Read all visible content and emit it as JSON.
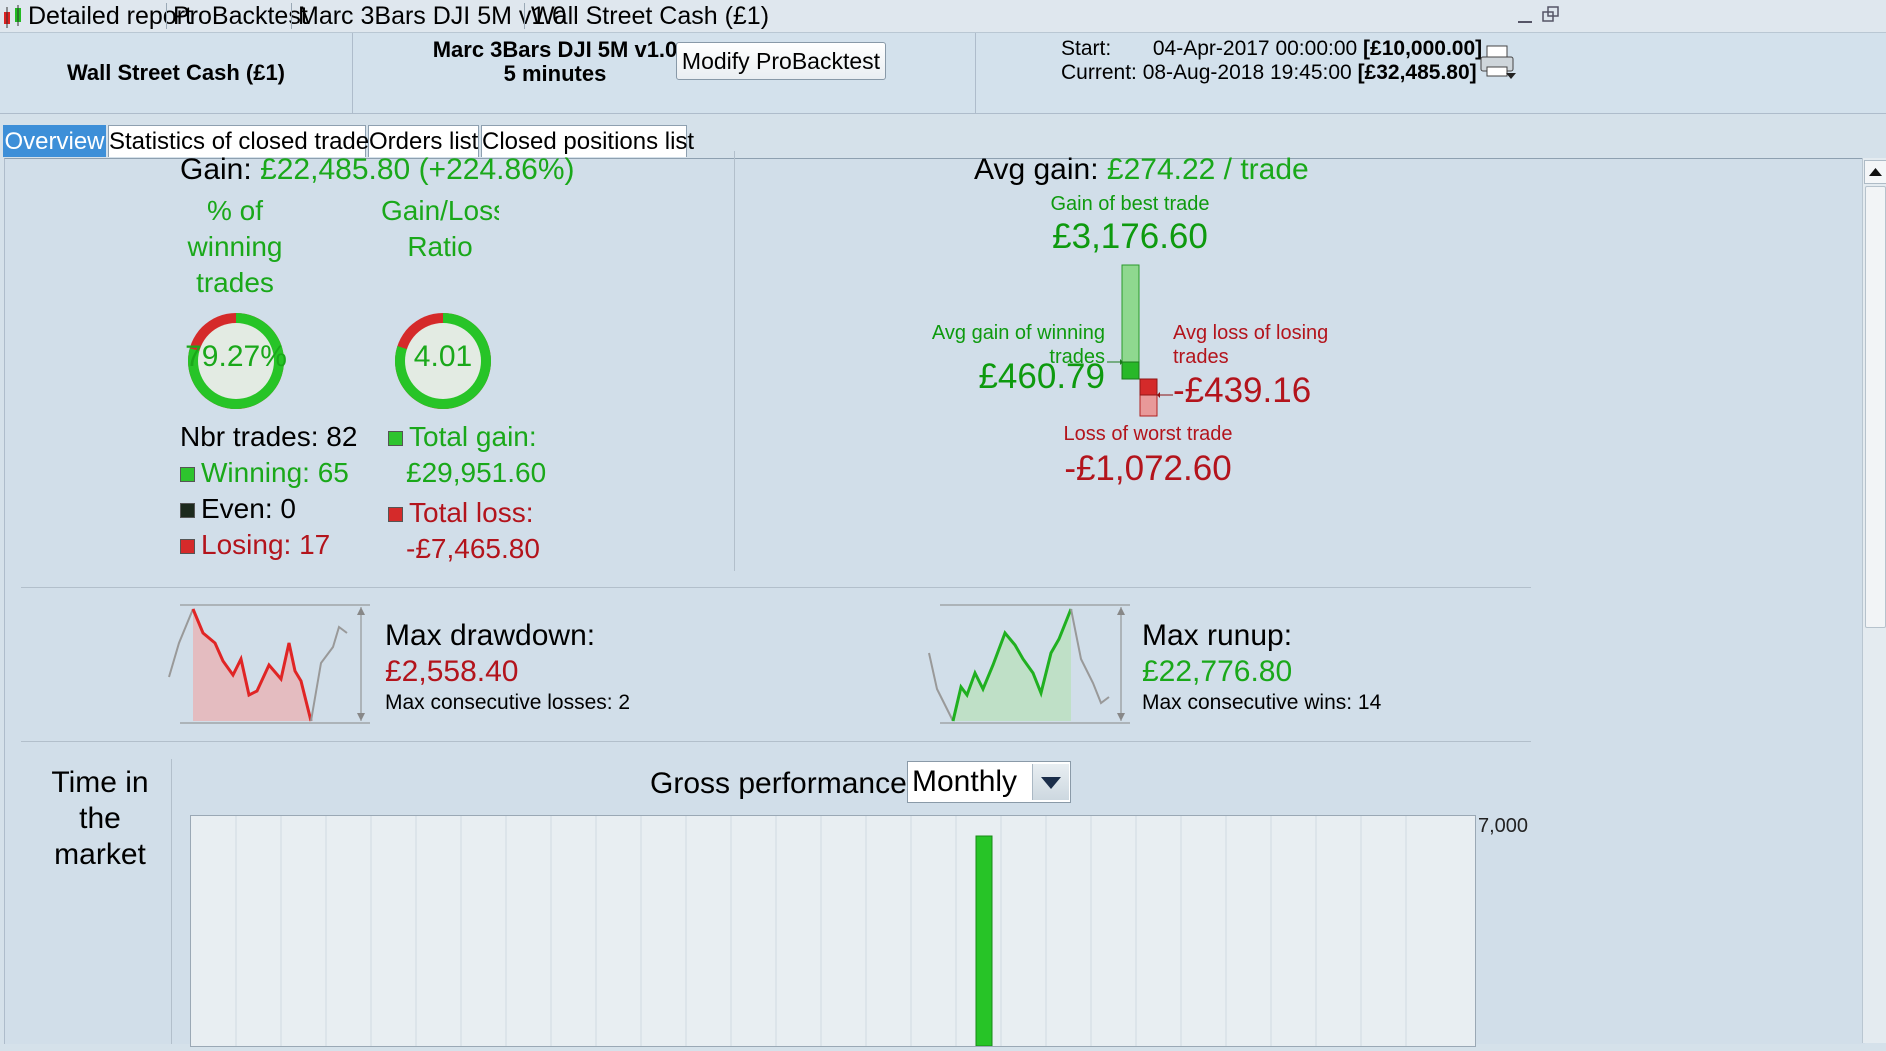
{
  "titlebar": {
    "crumbs": [
      "Detailed report",
      "ProBacktest",
      "Marc 3Bars DJI 5M v1.0",
      "Wall Street Cash (£1)"
    ]
  },
  "header": {
    "instrument": "Wall Street Cash (£1)",
    "strategy_name": "Marc 3Bars DJI 5M v1.0",
    "timeframe": "5 minutes",
    "modify_label": "Modify ProBacktest",
    "start_label": "Start:",
    "start_date": "04-Apr-2017 00:00:00",
    "start_capital": "[£10,000.00]",
    "current_label": "Current:",
    "current_date": "08-Aug-2018 19:45:00",
    "current_capital": "[£32,485.80]"
  },
  "tabs": [
    "Overview",
    "Statistics of closed trades",
    "Orders list",
    "Closed positions list"
  ],
  "overview": {
    "gain_label": "Gain:",
    "gain_value": "£22,485.80",
    "gain_pct": "(+224.86%)",
    "win_pct_label": [
      "% of",
      "winning",
      "trades"
    ],
    "win_pct_value": "79.27%",
    "win_ratio": 0.7927,
    "gl_ratio_label": [
      "Gain/Loss",
      "Ratio"
    ],
    "gl_ratio_value": "4.01",
    "gl_ratio_fraction": 0.8004,
    "nbr_trades": "Nbr trades: 82",
    "winning": "Winning: 65",
    "even": "Even: 0",
    "losing": "Losing: 17",
    "total_gain_label": "Total gain:",
    "total_gain_value": "£29,951.60",
    "total_loss_label": "Total loss:",
    "total_loss_value": "-£7,465.80",
    "avg_gain_label": "Avg gain:",
    "avg_gain_value": "£274.22 / trade",
    "best_trade_label": "Gain of best trade",
    "best_trade_value": "£3,176.60",
    "avg_win_label": [
      "Avg gain of winning",
      "trades"
    ],
    "avg_win_value": "£460.79",
    "avg_loss_label": [
      "Avg loss of losing",
      "trades"
    ],
    "avg_loss_value": "-£439.16",
    "worst_trade_label": "Loss of worst trade",
    "worst_trade_value": "-£1,072.60",
    "max_drawdown_label": "Max drawdown:",
    "max_drawdown_value": "£2,558.40",
    "max_consec_losses": "Max consecutive losses: 2",
    "max_runup_label": "Max runup:",
    "max_runup_value": "£22,776.80",
    "max_consec_wins": "Max consecutive wins: 14",
    "time_in_market_label": [
      "Time in",
      "the",
      "market"
    ],
    "gross_perf_label": "Gross performance",
    "period_select": "Monthly",
    "y_tick_top": "7,000",
    "colors": {
      "green": "#1aa81a",
      "red": "#b3141c",
      "tab_active": "#3d8fd8"
    }
  }
}
